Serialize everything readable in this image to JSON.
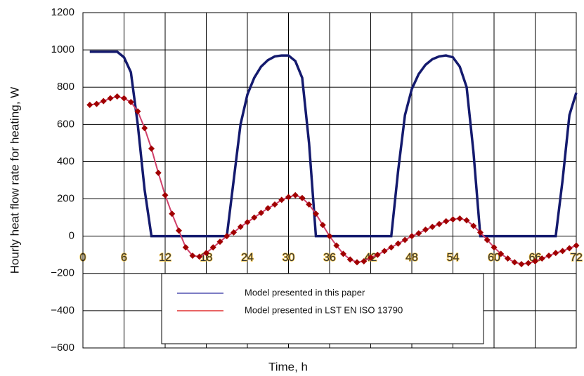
{
  "chart_data": {
    "type": "line",
    "xlabel": "Time, h",
    "ylabel": "Hourly heat flow rate for heating, W",
    "x": [
      1,
      2,
      3,
      4,
      5,
      6,
      7,
      8,
      9,
      10,
      11,
      12,
      13,
      14,
      15,
      16,
      17,
      18,
      19,
      20,
      21,
      22,
      23,
      24,
      25,
      26,
      27,
      28,
      29,
      30,
      31,
      32,
      33,
      34,
      35,
      36,
      37,
      38,
      39,
      40,
      41,
      42,
      43,
      44,
      45,
      46,
      47,
      48,
      49,
      50,
      51,
      52,
      53,
      54,
      55,
      56,
      57,
      58,
      59,
      60,
      61,
      62,
      63,
      64,
      65,
      66,
      67,
      68,
      69,
      70,
      71,
      72
    ],
    "series": [
      {
        "name": "Model presented in this paper",
        "color": "#141a6e",
        "marker": false,
        "values": [
          990,
          990,
          990,
          990,
          990,
          960,
          880,
          600,
          250,
          0,
          0,
          0,
          0,
          0,
          0,
          0,
          0,
          0,
          0,
          0,
          0,
          300,
          600,
          760,
          850,
          910,
          945,
          965,
          970,
          970,
          940,
          850,
          500,
          0,
          0,
          0,
          0,
          0,
          0,
          0,
          0,
          0,
          0,
          0,
          0,
          350,
          650,
          790,
          870,
          920,
          950,
          965,
          970,
          960,
          910,
          800,
          450,
          0,
          0,
          0,
          0,
          0,
          0,
          0,
          0,
          0,
          0,
          0,
          0,
          300,
          650,
          770
        ]
      },
      {
        "name": "Model presented in LST EN ISO 13790",
        "color": "#d0406a",
        "marker": true,
        "marker_color": "#a00000",
        "values": [
          705,
          710,
          725,
          740,
          750,
          740,
          720,
          670,
          580,
          470,
          340,
          220,
          120,
          30,
          -60,
          -105,
          -110,
          -90,
          -60,
          -30,
          0,
          20,
          50,
          75,
          100,
          125,
          150,
          170,
          195,
          210,
          220,
          205,
          170,
          120,
          60,
          0,
          -50,
          -95,
          -125,
          -140,
          -135,
          -115,
          -100,
          -80,
          -60,
          -40,
          -20,
          0,
          15,
          35,
          50,
          65,
          80,
          90,
          95,
          85,
          55,
          20,
          -20,
          -60,
          -95,
          -120,
          -140,
          -150,
          -145,
          -135,
          -120,
          -105,
          -90,
          -80,
          -65,
          -50
        ]
      }
    ],
    "xlim": [
      0,
      72
    ],
    "xticks": [
      0,
      6,
      12,
      18,
      24,
      30,
      36,
      42,
      48,
      54,
      60,
      66,
      72
    ],
    "ylim": [
      -600,
      1200
    ],
    "yticks": [
      {
        "value": -600,
        "label": "−600"
      },
      {
        "value": -400,
        "label": "−400"
      },
      {
        "value": -200,
        "label": "−200"
      },
      0,
      200,
      400,
      600,
      800,
      1000,
      1200
    ],
    "grid": true,
    "legend": "lower center"
  }
}
